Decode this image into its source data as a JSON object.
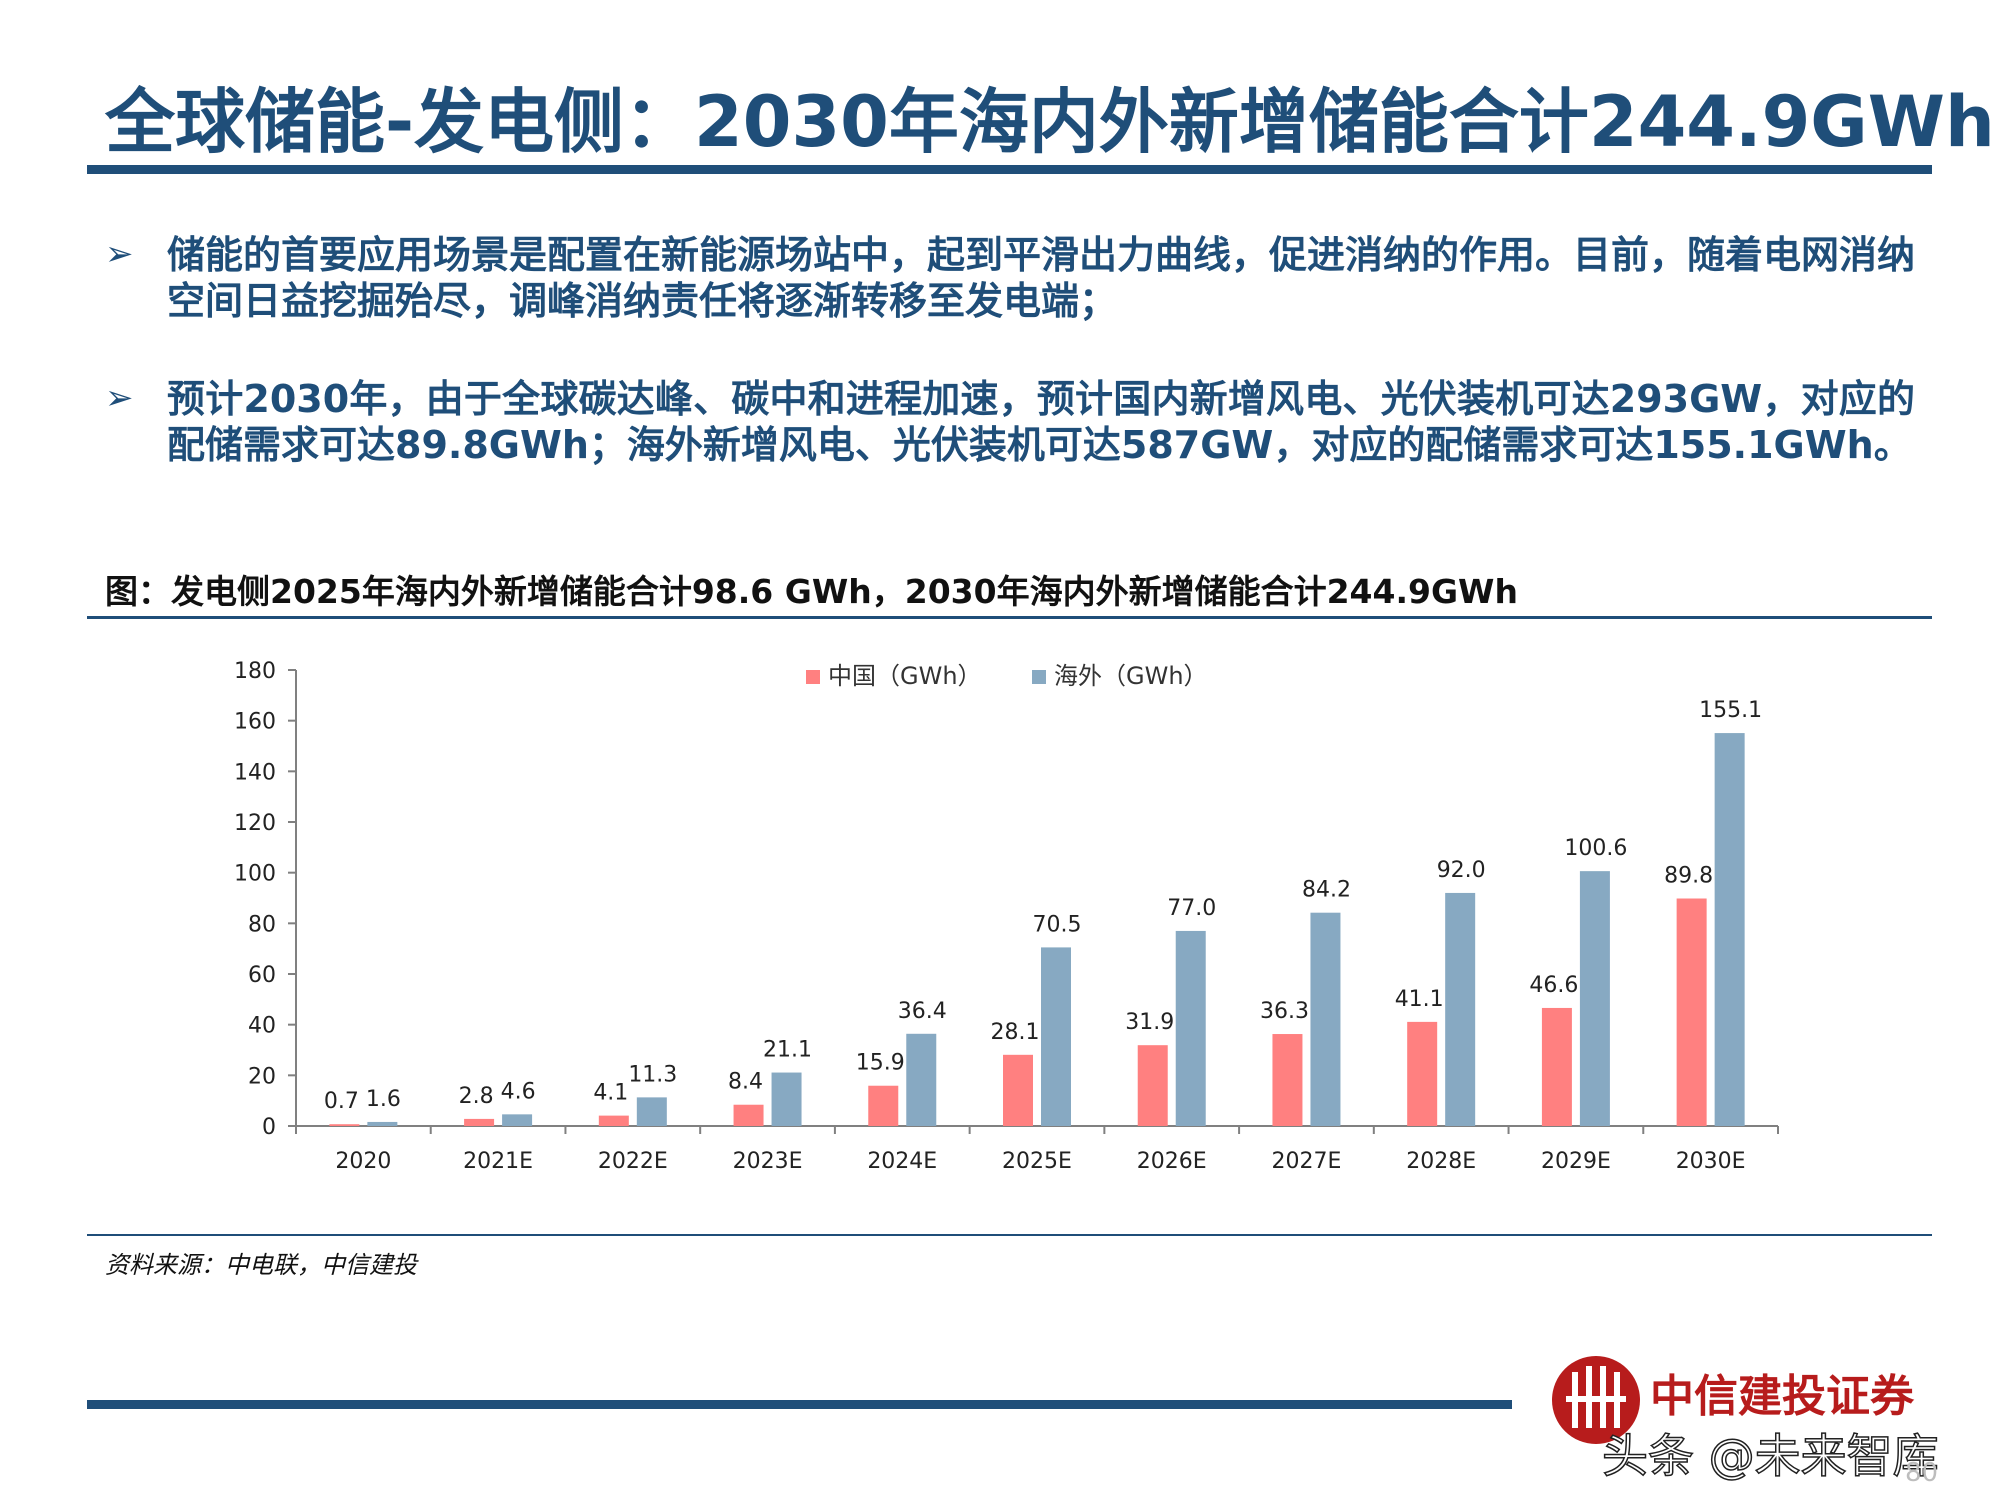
{
  "slide": {
    "title": "全球储能-发电侧：2030年海内外新增储能合计244.9GWh",
    "bullets": [
      "储能的首要应用场景是配置在新能源场站中，起到平滑出力曲线，促进消纳的作用。目前，随着电网消纳空间日益挖掘殆尽，调峰消纳责任将逐渐转移至发电端；",
      "预计2030年，由于全球碳达峰、碳中和进程加速，预计国内新增风电、光伏装机可达293GW，对应的配储需求可达89.8GWh；海外新增风电、光伏装机可达587GW，对应的配储需求可达155.1GWh。"
    ],
    "bullet_icon": "arrow-bullet-icon",
    "figure_caption": "图：发电侧2025年海内外新增储能合计98.6 GWh，2030年海内外新增储能合计244.9GWh",
    "source": "资料来源：中电联，中信建投",
    "logo_text": "中信建投证券",
    "logo_icon": "citic-logo-icon",
    "watermark": "头条 @未来智库",
    "page_number": "80",
    "colors": {
      "title": "#1f4e79",
      "china": "#ff8080",
      "overseas": "#87a9c2",
      "logo": "#b71c1c"
    }
  },
  "chart_data": {
    "type": "bar",
    "categories": [
      "2020",
      "2021E",
      "2022E",
      "2023E",
      "2024E",
      "2025E",
      "2026E",
      "2027E",
      "2028E",
      "2029E",
      "2030E"
    ],
    "series": [
      {
        "name": "中国（GWh）",
        "color": "#ff8080",
        "values": [
          0.7,
          2.8,
          4.1,
          8.4,
          15.9,
          28.1,
          31.9,
          36.3,
          41.1,
          46.6,
          89.8
        ]
      },
      {
        "name": "海外（GWh）",
        "color": "#87a9c2",
        "values": [
          1.6,
          4.6,
          11.3,
          21.1,
          36.4,
          70.5,
          77.0,
          84.2,
          92.0,
          100.6,
          155.1
        ]
      }
    ],
    "labels": [
      [
        "0.7",
        "2.8",
        "4.1",
        "8.4",
        "15.9",
        "28.1",
        "31.9",
        "36.3",
        "41.1",
        "46.6",
        "89.8"
      ],
      [
        "1.6",
        "4.6",
        "11.3",
        "21.1",
        "36.4",
        "70.5",
        "77.0",
        "84.2",
        "92.0",
        "100.6",
        "155.1"
      ]
    ],
    "ylim": [
      0,
      180
    ],
    "yticks": [
      "0",
      "20",
      "40",
      "60",
      "80",
      "100",
      "120",
      "140",
      "160",
      "180"
    ],
    "legend_position": "top-center",
    "grid": false
  }
}
